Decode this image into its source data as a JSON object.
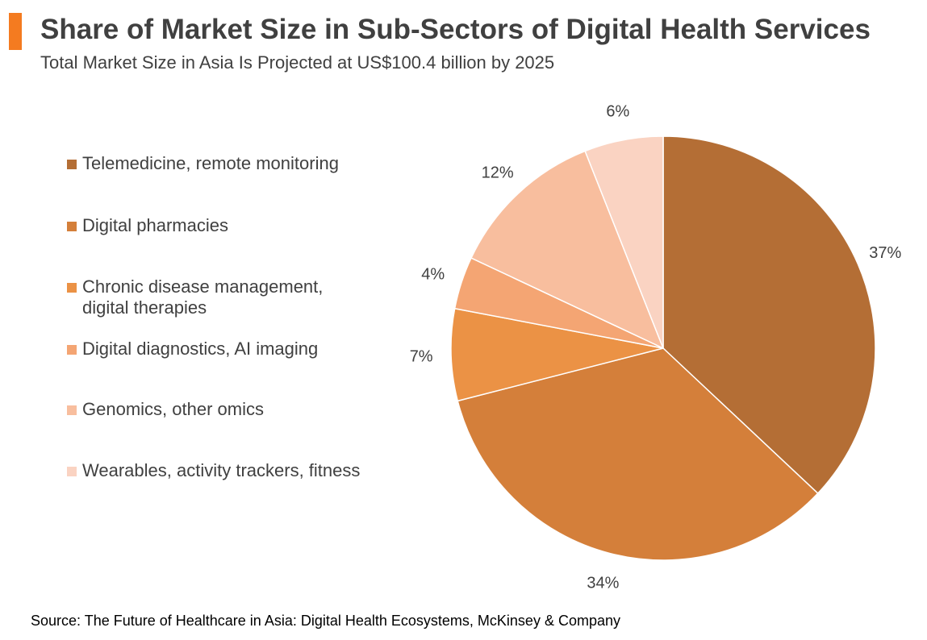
{
  "header": {
    "title": "Share of Market Size in Sub-Sectors of Digital Health Services",
    "subtitle": "Total Market Size in Asia Is Projected at US$100.4 billion by 2025",
    "accent_color": "#F47B20"
  },
  "chart_data": {
    "type": "pie",
    "title": "Share of Market Size in Sub-Sectors of Digital Health Services",
    "subtitle": "Total Market Size in Asia Is Projected at US$100.4 billion by 2025",
    "start": "top, clockwise",
    "legend_position": "left",
    "slices": [
      {
        "label": "Telemedicine, remote monitoring",
        "value": 37,
        "display": "37%",
        "color": "#B46E35"
      },
      {
        "label": "Digital pharmacies",
        "value": 34,
        "display": "34%",
        "color": "#D47F3A"
      },
      {
        "label": "Chronic disease management, digital therapies",
        "value": 7,
        "display": "7%",
        "color": "#EB9245"
      },
      {
        "label": "Digital diagnostics, AI imaging",
        "value": 4,
        "display": "4%",
        "color": "#F4A573"
      },
      {
        "label": "Genomics, other omics",
        "value": 12,
        "display": "12%",
        "color": "#F8BE9E"
      },
      {
        "label": "Wearables, activity trackers, fitness",
        "value": 6,
        "display": "6%",
        "color": "#FAD3C2"
      }
    ]
  },
  "footer": {
    "source": "Source: The Future of Healthcare in Asia: Digital Health Ecosystems, McKinsey & Company"
  }
}
